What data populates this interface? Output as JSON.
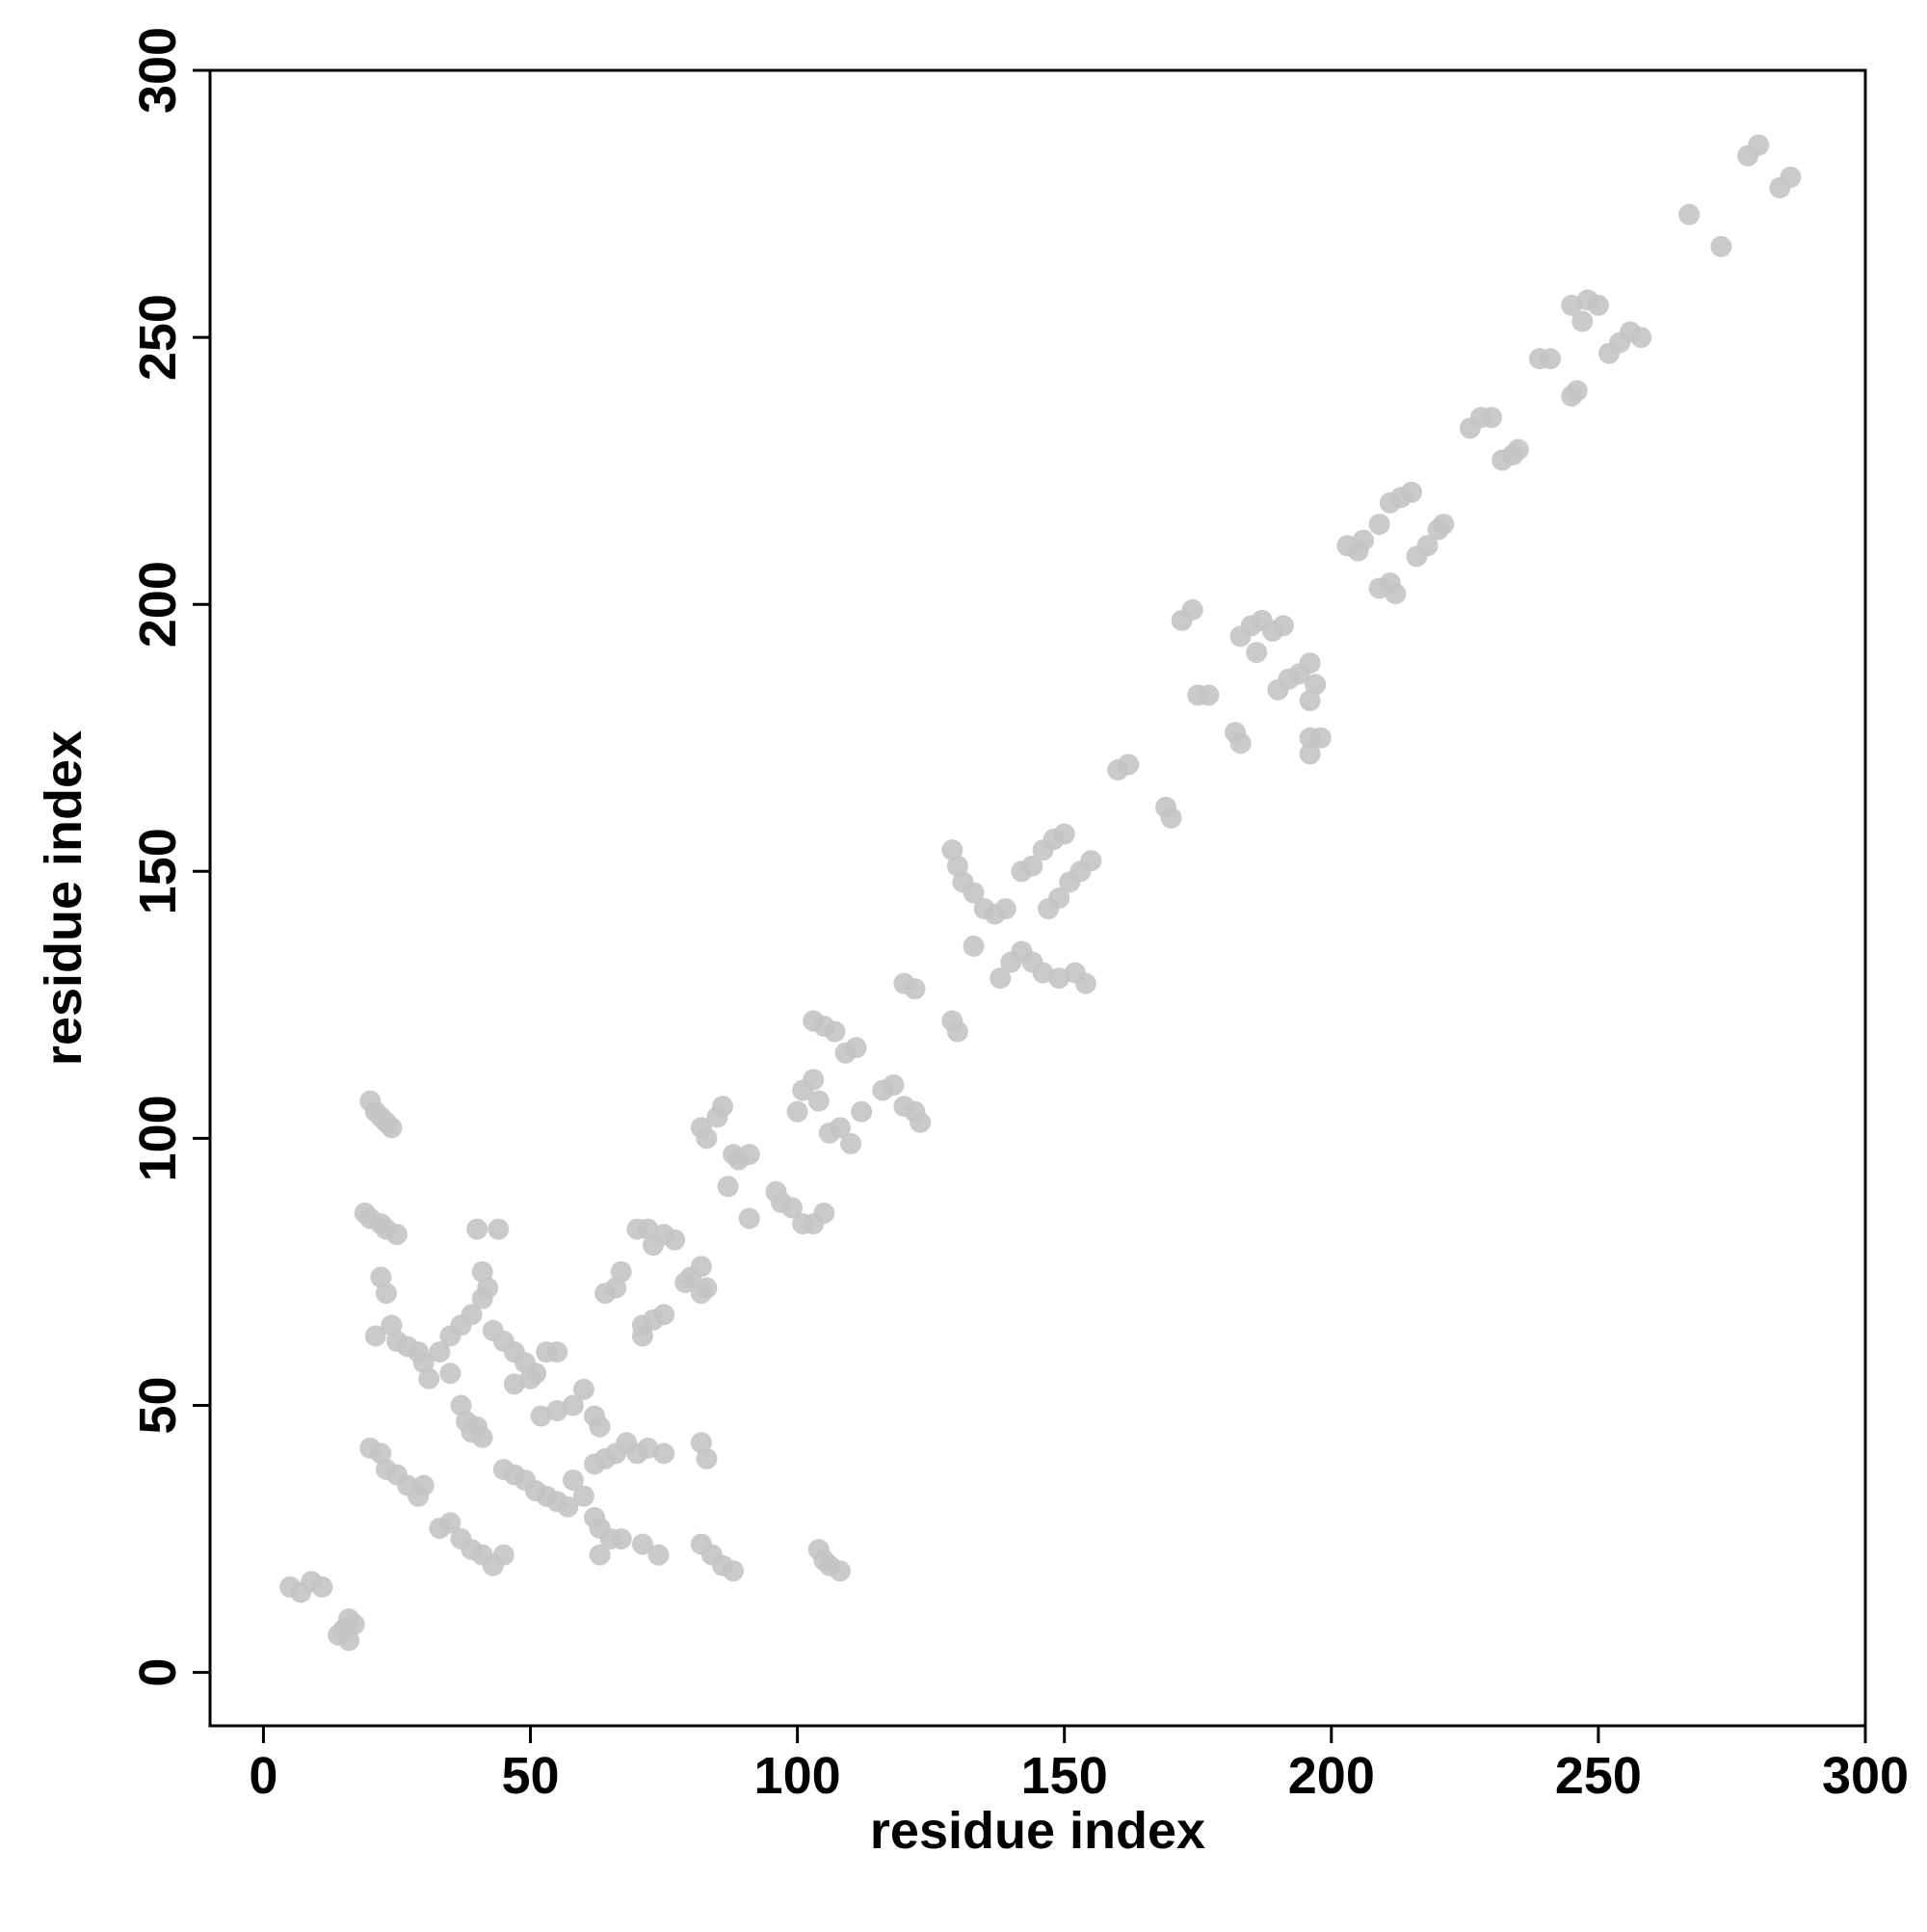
{
  "chart_data": {
    "type": "scatter",
    "xlabel": "residue index",
    "ylabel": "residue index",
    "color": "#c4c4c4",
    "grid": false,
    "xlim": [
      -10,
      300
    ],
    "ylim": [
      -10,
      300
    ],
    "xticks": [
      0,
      50,
      100,
      150,
      200,
      250,
      300
    ],
    "yticks": [
      0,
      50,
      100,
      150,
      200,
      250,
      300
    ],
    "x": [
      5,
      7,
      9,
      11,
      14,
      15,
      16,
      17,
      16,
      20,
      21,
      22,
      23,
      24,
      19,
      20,
      22,
      23,
      25,
      22,
      23,
      21,
      24,
      25,
      27,
      29,
      30,
      31,
      20,
      22,
      23,
      25,
      27,
      29,
      30,
      33,
      35,
      37,
      39,
      41,
      43,
      45,
      33,
      35,
      37,
      38,
      39,
      40,
      41,
      35,
      37,
      39,
      41,
      42,
      41,
      40,
      44,
      43,
      45,
      47,
      49,
      51,
      53,
      55,
      45,
      47,
      49,
      51,
      53,
      55,
      57,
      47,
      50,
      52,
      55,
      58,
      60,
      62,
      63,
      58,
      60,
      62,
      63,
      65,
      67,
      63,
      62,
      64,
      66,
      68,
      70,
      72,
      75,
      71,
      74,
      82,
      83,
      82,
      84,
      86,
      88,
      104,
      105,
      106,
      108,
      64,
      66,
      67,
      71,
      71,
      73,
      75,
      70,
      72,
      73,
      75,
      77,
      79,
      80,
      82,
      82,
      83,
      82,
      83,
      85,
      86,
      88,
      89,
      91,
      87,
      91,
      96,
      97,
      99,
      101,
      103,
      105,
      100,
      101,
      103,
      104,
      106,
      108,
      110,
      112,
      103,
      105,
      107,
      109,
      111,
      116,
      118,
      120,
      122,
      123,
      120,
      122,
      129,
      130,
      129,
      130,
      131,
      133,
      135,
      137,
      139,
      133,
      138,
      140,
      142,
      144,
      146,
      149,
      152,
      154,
      142,
      144,
      146,
      148,
      150,
      147,
      149,
      151,
      153,
      155,
      160,
      162,
      169,
      170,
      172,
      174,
      175,
      177,
      182,
      183,
      183,
      185,
      187,
      189,
      191,
      186,
      190,
      192,
      194,
      196,
      197,
      196,
      196,
      198,
      196,
      203,
      205,
      206,
      209,
      211,
      212,
      209,
      211,
      213,
      215,
      216,
      218,
      220,
      221,
      226,
      228,
      230,
      232,
      234,
      235,
      239,
      241,
      245,
      246,
      245,
      247,
      248,
      250,
      252,
      254,
      256,
      258,
      267,
      273,
      278,
      280,
      284,
      286
    ],
    "values": [
      16,
      15,
      17,
      16,
      7,
      8,
      6,
      9,
      10,
      107,
      105,
      104,
      103,
      102,
      86,
      85,
      84,
      83,
      82,
      74,
      71,
      63,
      65,
      62,
      61,
      60,
      58,
      55,
      42,
      41,
      38,
      37,
      35,
      33,
      35,
      27,
      28,
      25,
      23,
      22,
      20,
      22,
      60,
      56,
      50,
      47,
      45,
      46,
      44,
      63,
      65,
      67,
      70,
      72,
      75,
      83,
      83,
      64,
      62,
      60,
      58,
      56,
      60,
      60,
      38,
      37,
      36,
      34,
      33,
      32,
      31,
      54,
      55,
      48,
      49,
      50,
      53,
      48,
      46,
      36,
      33,
      29,
      27,
      25,
      25,
      22,
      39,
      40,
      41,
      43,
      41,
      42,
      41,
      24,
      22,
      43,
      40,
      24,
      22,
      20,
      19,
      23,
      21,
      20,
      19,
      71,
      72,
      75,
      65,
      63,
      66,
      67,
      83,
      83,
      80,
      82,
      81,
      73,
      74,
      76,
      71,
      72,
      102,
      100,
      104,
      106,
      97,
      96,
      97,
      91,
      85,
      90,
      88,
      87,
      84,
      84,
      86,
      105,
      109,
      111,
      107,
      101,
      102,
      99,
      105,
      122,
      121,
      120,
      116,
      117,
      109,
      110,
      106,
      105,
      103,
      129,
      128,
      122,
      120,
      154,
      151,
      148,
      146,
      143,
      142,
      143,
      136,
      130,
      133,
      135,
      133,
      131,
      130,
      131,
      129,
      150,
      151,
      154,
      156,
      157,
      143,
      145,
      148,
      150,
      152,
      169,
      170,
      162,
      160,
      197,
      199,
      183,
      183,
      176,
      174,
      194,
      196,
      197,
      195,
      196,
      191,
      184,
      186,
      187,
      189,
      185,
      182,
      175,
      175,
      172,
      211,
      210,
      212,
      203,
      204,
      202,
      215,
      219,
      220,
      221,
      209,
      211,
      214,
      215,
      233,
      235,
      235,
      227,
      228,
      229,
      246,
      246,
      239,
      240,
      256,
      253,
      257,
      256,
      247,
      249,
      251,
      250,
      273,
      267,
      284,
      286,
      278,
      280
    ]
  }
}
